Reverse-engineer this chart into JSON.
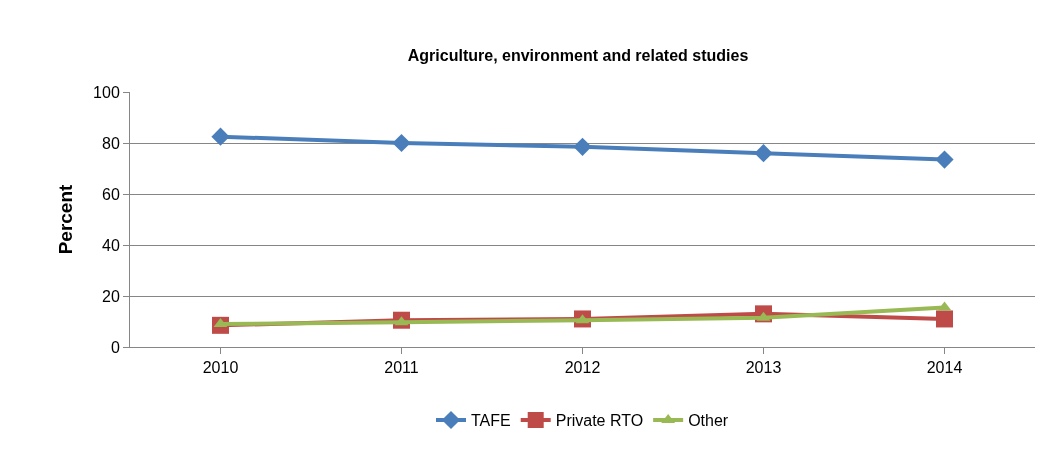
{
  "chart_data": {
    "type": "line",
    "title": "Agriculture, environment and related studies",
    "ylabel": "Percent",
    "categories": [
      "2010",
      "2011",
      "2012",
      "2013",
      "2014"
    ],
    "series": [
      {
        "name": "TAFE",
        "color": "#4a7ebb",
        "marker": "diamond",
        "values": [
          82.5,
          80,
          78.5,
          76,
          73.5
        ]
      },
      {
        "name": "Private RTO",
        "color": "#be4b48",
        "marker": "square",
        "values": [
          8.5,
          10.5,
          11,
          13,
          11
        ]
      },
      {
        "name": "Other",
        "color": "#98b954",
        "marker": "triangle",
        "values": [
          9,
          9.7,
          10.5,
          11.5,
          15.5
        ]
      }
    ],
    "ylim": [
      0,
      100
    ],
    "yticks": [
      0,
      20,
      40,
      60,
      80,
      100
    ],
    "grid": "y",
    "legend": "bottom",
    "line_style": "solid"
  }
}
